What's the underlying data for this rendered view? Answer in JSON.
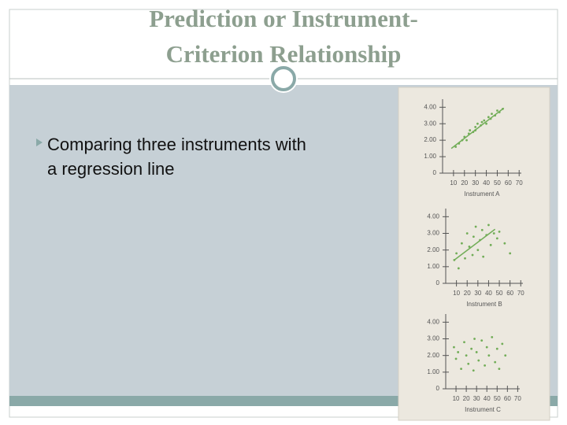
{
  "title": [
    "Prediction or Instrument-",
    "Criterion Relationship"
  ],
  "bullets": [
    [
      "Comparing three instruments with",
      "a regression line"
    ]
  ],
  "chart_data": [
    {
      "type": "scatter",
      "x_label": "Instrument A",
      "color": "#72ad58",
      "xlim": [
        0,
        72
      ],
      "ylim": [
        0,
        4.3
      ],
      "xticks": [
        10,
        20,
        30,
        40,
        50,
        60,
        70
      ],
      "yticks": [
        0,
        {
          "value": 1,
          "label": "1.00"
        },
        {
          "value": 2,
          "label": "2.00"
        },
        {
          "value": 3,
          "label": "3.00"
        },
        {
          "value": 4,
          "label": "4.00"
        }
      ],
      "x": [
        12,
        15,
        18,
        20,
        22,
        24,
        25,
        28,
        30,
        30,
        32,
        35,
        36,
        38,
        40,
        42,
        44,
        45,
        48,
        50,
        52,
        55
      ],
      "values": [
        1.6,
        1.8,
        2.0,
        2.2,
        2.0,
        2.4,
        2.6,
        2.5,
        2.8,
        2.6,
        3.0,
        2.9,
        3.1,
        3.2,
        3.0,
        3.4,
        3.3,
        3.6,
        3.5,
        3.8,
        3.7,
        3.9
      ],
      "regression": {
        "x": [
          8,
          56
        ],
        "y": [
          1.5,
          3.95
        ]
      }
    },
    {
      "type": "scatter",
      "x_label": "Instrument B",
      "color": "#72ad58",
      "xlim": [
        0,
        72
      ],
      "ylim": [
        0,
        4.3
      ],
      "xticks": [
        10,
        20,
        30,
        40,
        50,
        60,
        70
      ],
      "yticks": [
        0,
        {
          "value": 1,
          "label": "1.00"
        },
        {
          "value": 2,
          "label": "2.00"
        },
        {
          "value": 3,
          "label": "3.00"
        },
        {
          "value": 4,
          "label": "4.00"
        }
      ],
      "x": [
        8,
        10,
        12,
        15,
        18,
        20,
        22,
        25,
        26,
        28,
        30,
        32,
        34,
        35,
        38,
        40,
        42,
        45,
        48,
        50,
        55,
        60
      ],
      "values": [
        1.4,
        1.8,
        0.9,
        2.4,
        1.5,
        3.0,
        2.2,
        1.7,
        2.8,
        3.4,
        2.0,
        2.6,
        3.2,
        1.6,
        2.9,
        3.5,
        2.3,
        3.0,
        2.7,
        3.1,
        2.4,
        1.8
      ],
      "regression": {
        "x": [
          8,
          46
        ],
        "y": [
          1.4,
          3.25
        ]
      }
    },
    {
      "type": "scatter",
      "x_label": "Instrument C",
      "color": "#72ad58",
      "xlim": [
        0,
        72
      ],
      "ylim": [
        0,
        4.3
      ],
      "xticks": [
        10,
        20,
        30,
        40,
        50,
        60,
        70
      ],
      "yticks": [
        0,
        {
          "value": 1,
          "label": "1.00"
        },
        {
          "value": 2,
          "label": "2.00"
        },
        {
          "value": 3,
          "label": "3.00"
        },
        {
          "value": 4,
          "label": "4.00"
        }
      ],
      "x": [
        8,
        10,
        12,
        15,
        18,
        20,
        22,
        25,
        27,
        28,
        30,
        32,
        35,
        38,
        40,
        42,
        45,
        48,
        50,
        52,
        55,
        58
      ],
      "values": [
        2.5,
        1.8,
        2.2,
        1.2,
        2.8,
        2.0,
        1.5,
        2.4,
        1.1,
        3.0,
        2.2,
        1.7,
        2.9,
        1.4,
        2.5,
        2.0,
        3.1,
        1.6,
        2.4,
        1.2,
        2.7,
        2.0
      ]
    }
  ]
}
